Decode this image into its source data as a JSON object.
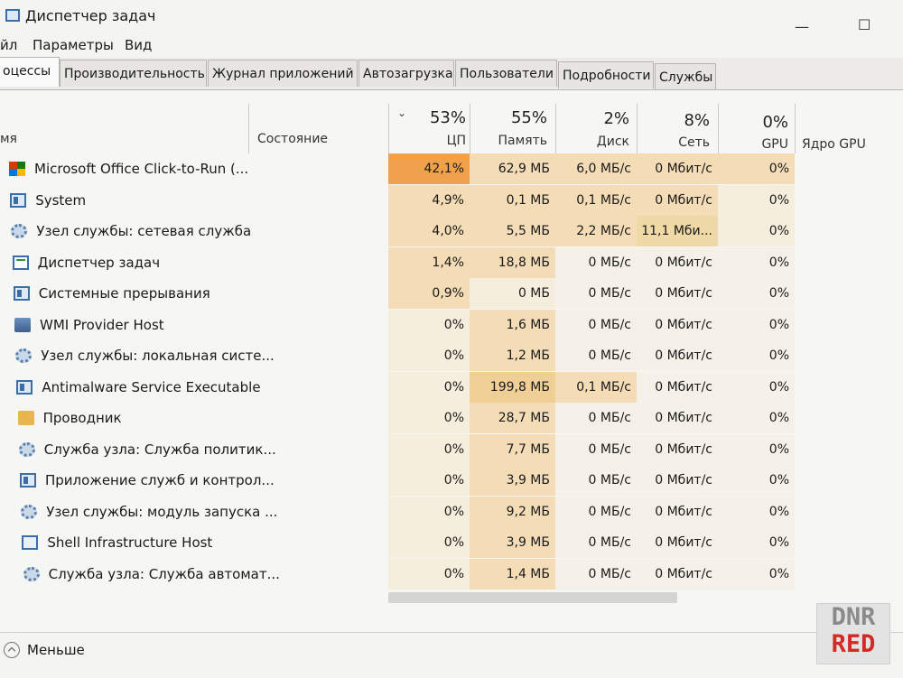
{
  "window": {
    "title": "Диспетчер задач",
    "minimize": "—",
    "maximize": "☐"
  },
  "menu": [
    "йл",
    "Параметры",
    "Вид"
  ],
  "tabs": [
    "оцессы",
    "Производительность",
    "Журнал приложений",
    "Автозагрузка",
    "Пользователи",
    "Подробности",
    "Службы"
  ],
  "header": {
    "name": "мя",
    "status": "Состояние",
    "cpu": {
      "pct": "53%",
      "label": "ЦП"
    },
    "mem": {
      "pct": "55%",
      "label": "Память"
    },
    "disk": {
      "pct": "2%",
      "label": "Диск"
    },
    "net": {
      "pct": "8%",
      "label": "Сеть"
    },
    "gpu": {
      "pct": "0%",
      "label": "GPU"
    },
    "gpu_core": {
      "label": "Ядро GPU"
    }
  },
  "processes": [
    {
      "name": "Microsoft Office Click-to-Run (...",
      "icon": "office-icon",
      "cpu": "42,1%",
      "mem": "62,9 МБ",
      "disk": "6,0 МБ/с",
      "net": "0 Мбит/с",
      "gpu": "0%",
      "cpu_bg": "#f0a14b",
      "mem_bg": "#f3dcb6",
      "disk_bg": "#f3dcb6",
      "net_bg": "#f3dcb6",
      "gpu_bg": "#f3dcb6"
    },
    {
      "name": "System",
      "icon": "window-icon",
      "cpu": "4,9%",
      "mem": "0,1 МБ",
      "disk": "0,1 МБ/с",
      "net": "0 Мбит/с",
      "gpu": "0%",
      "cpu_bg": "#f3dcb6",
      "mem_bg": "#f3dcb6",
      "disk_bg": "#f3dcb6",
      "net_bg": "#f3dcb6",
      "gpu_bg": "#f6eedd"
    },
    {
      "name": "Узел службы: сетевая служба",
      "icon": "gear-icon",
      "cpu": "4,0%",
      "mem": "5,5 МБ",
      "disk": "2,2 МБ/с",
      "net": "11,1 Мби...",
      "gpu": "0%",
      "cpu_bg": "#f3dcb6",
      "mem_bg": "#f3dcb6",
      "disk_bg": "#f3dcb6",
      "net_bg": "#efd9a6",
      "gpu_bg": "#f6eedd"
    },
    {
      "name": "Диспетчер задач",
      "icon": "task-manager-icon",
      "cpu": "1,4%",
      "mem": "18,8 МБ",
      "disk": "0 МБ/с",
      "net": "0 Мбит/с",
      "gpu": "0%",
      "cpu_bg": "#f3dcb6",
      "mem_bg": "#f3dcb6",
      "disk_bg": "#f6f1e8",
      "net_bg": "#f6f1e8",
      "gpu_bg": "#f6f1e8"
    },
    {
      "name": "Системные прерывания",
      "icon": "window-icon",
      "cpu": "0,9%",
      "mem": "0 МБ",
      "disk": "0 МБ/с",
      "net": "0 Мбит/с",
      "gpu": "0%",
      "cpu_bg": "#f3dcb6",
      "mem_bg": "#f6eedd",
      "disk_bg": "#f6f1e8",
      "net_bg": "#f6f1e8",
      "gpu_bg": "#f6f1e8"
    },
    {
      "name": "WMI Provider Host",
      "icon": "wmi-icon",
      "cpu": "0%",
      "mem": "1,6 МБ",
      "disk": "0 МБ/с",
      "net": "0 Мбит/с",
      "gpu": "0%",
      "cpu_bg": "#f6eedd",
      "mem_bg": "#f3dcb6",
      "disk_bg": "#f6f1e8",
      "net_bg": "#f6f1e8",
      "gpu_bg": "#f6f1e8"
    },
    {
      "name": "Узел службы: локальная систе...",
      "icon": "gear-icon",
      "cpu": "0%",
      "mem": "1,2 МБ",
      "disk": "0 МБ/с",
      "net": "0 Мбит/с",
      "gpu": "0%",
      "cpu_bg": "#f6eedd",
      "mem_bg": "#f3dcb6",
      "disk_bg": "#f6f1e8",
      "net_bg": "#f6f1e8",
      "gpu_bg": "#f6f1e8"
    },
    {
      "name": "Antimalware Service Executable",
      "icon": "window-icon",
      "cpu": "0%",
      "mem": "199,8 МБ",
      "disk": "0,1 МБ/с",
      "net": "0 Мбит/с",
      "gpu": "0%",
      "cpu_bg": "#f6eedd",
      "mem_bg": "#f0cf96",
      "disk_bg": "#f3dcb6",
      "net_bg": "#f6f1e8",
      "gpu_bg": "#f6f1e8"
    },
    {
      "name": "Проводник",
      "icon": "folder-icon",
      "cpu": "0%",
      "mem": "28,7 МБ",
      "disk": "0 МБ/с",
      "net": "0 Мбит/с",
      "gpu": "0%",
      "cpu_bg": "#f6eedd",
      "mem_bg": "#f3dcb6",
      "disk_bg": "#f6f1e8",
      "net_bg": "#f6f1e8",
      "gpu_bg": "#f6f1e8"
    },
    {
      "name": "Служба узла: Служба политик...",
      "icon": "gear-icon",
      "cpu": "0%",
      "mem": "7,7 МБ",
      "disk": "0 МБ/с",
      "net": "0 Мбит/с",
      "gpu": "0%",
      "cpu_bg": "#f6eedd",
      "mem_bg": "#f3dcb6",
      "disk_bg": "#f6f1e8",
      "net_bg": "#f6f1e8",
      "gpu_bg": "#f6f1e8"
    },
    {
      "name": "Приложение служб и контрол...",
      "icon": "window-icon",
      "cpu": "0%",
      "mem": "3,9 МБ",
      "disk": "0 МБ/с",
      "net": "0 Мбит/с",
      "gpu": "0%",
      "cpu_bg": "#f6eedd",
      "mem_bg": "#f3dcb6",
      "disk_bg": "#f6f1e8",
      "net_bg": "#f6f1e8",
      "gpu_bg": "#f6f1e8"
    },
    {
      "name": "Узел службы: модуль запуска ...",
      "icon": "gear-icon",
      "cpu": "0%",
      "mem": "9,2 МБ",
      "disk": "0 МБ/с",
      "net": "0 Мбит/с",
      "gpu": "0%",
      "cpu_bg": "#f6eedd",
      "mem_bg": "#f3dcb6",
      "disk_bg": "#f6f1e8",
      "net_bg": "#f6f1e8",
      "gpu_bg": "#f6f1e8"
    },
    {
      "name": "Shell Infrastructure Host",
      "icon": "shell-icon",
      "cpu": "0%",
      "mem": "3,9 МБ",
      "disk": "0 МБ/с",
      "net": "0 Мбит/с",
      "gpu": "0%",
      "cpu_bg": "#f6eedd",
      "mem_bg": "#f3dcb6",
      "disk_bg": "#f6f1e8",
      "net_bg": "#f6f1e8",
      "gpu_bg": "#f6f1e8"
    },
    {
      "name": "Служба узла: Служба автомат...",
      "icon": "gear-icon",
      "cpu": "0%",
      "mem": "1,4 МБ",
      "disk": "0 МБ/с",
      "net": "0 Мбит/с",
      "gpu": "0%",
      "cpu_bg": "#f6eedd",
      "mem_bg": "#f3dcb6",
      "disk_bg": "#f6f1e8",
      "net_bg": "#f6f1e8",
      "gpu_bg": "#f6f1e8"
    }
  ],
  "footer": {
    "less_label": "Меньше"
  },
  "watermark": {
    "line1": "DNR",
    "line2": "RED"
  }
}
